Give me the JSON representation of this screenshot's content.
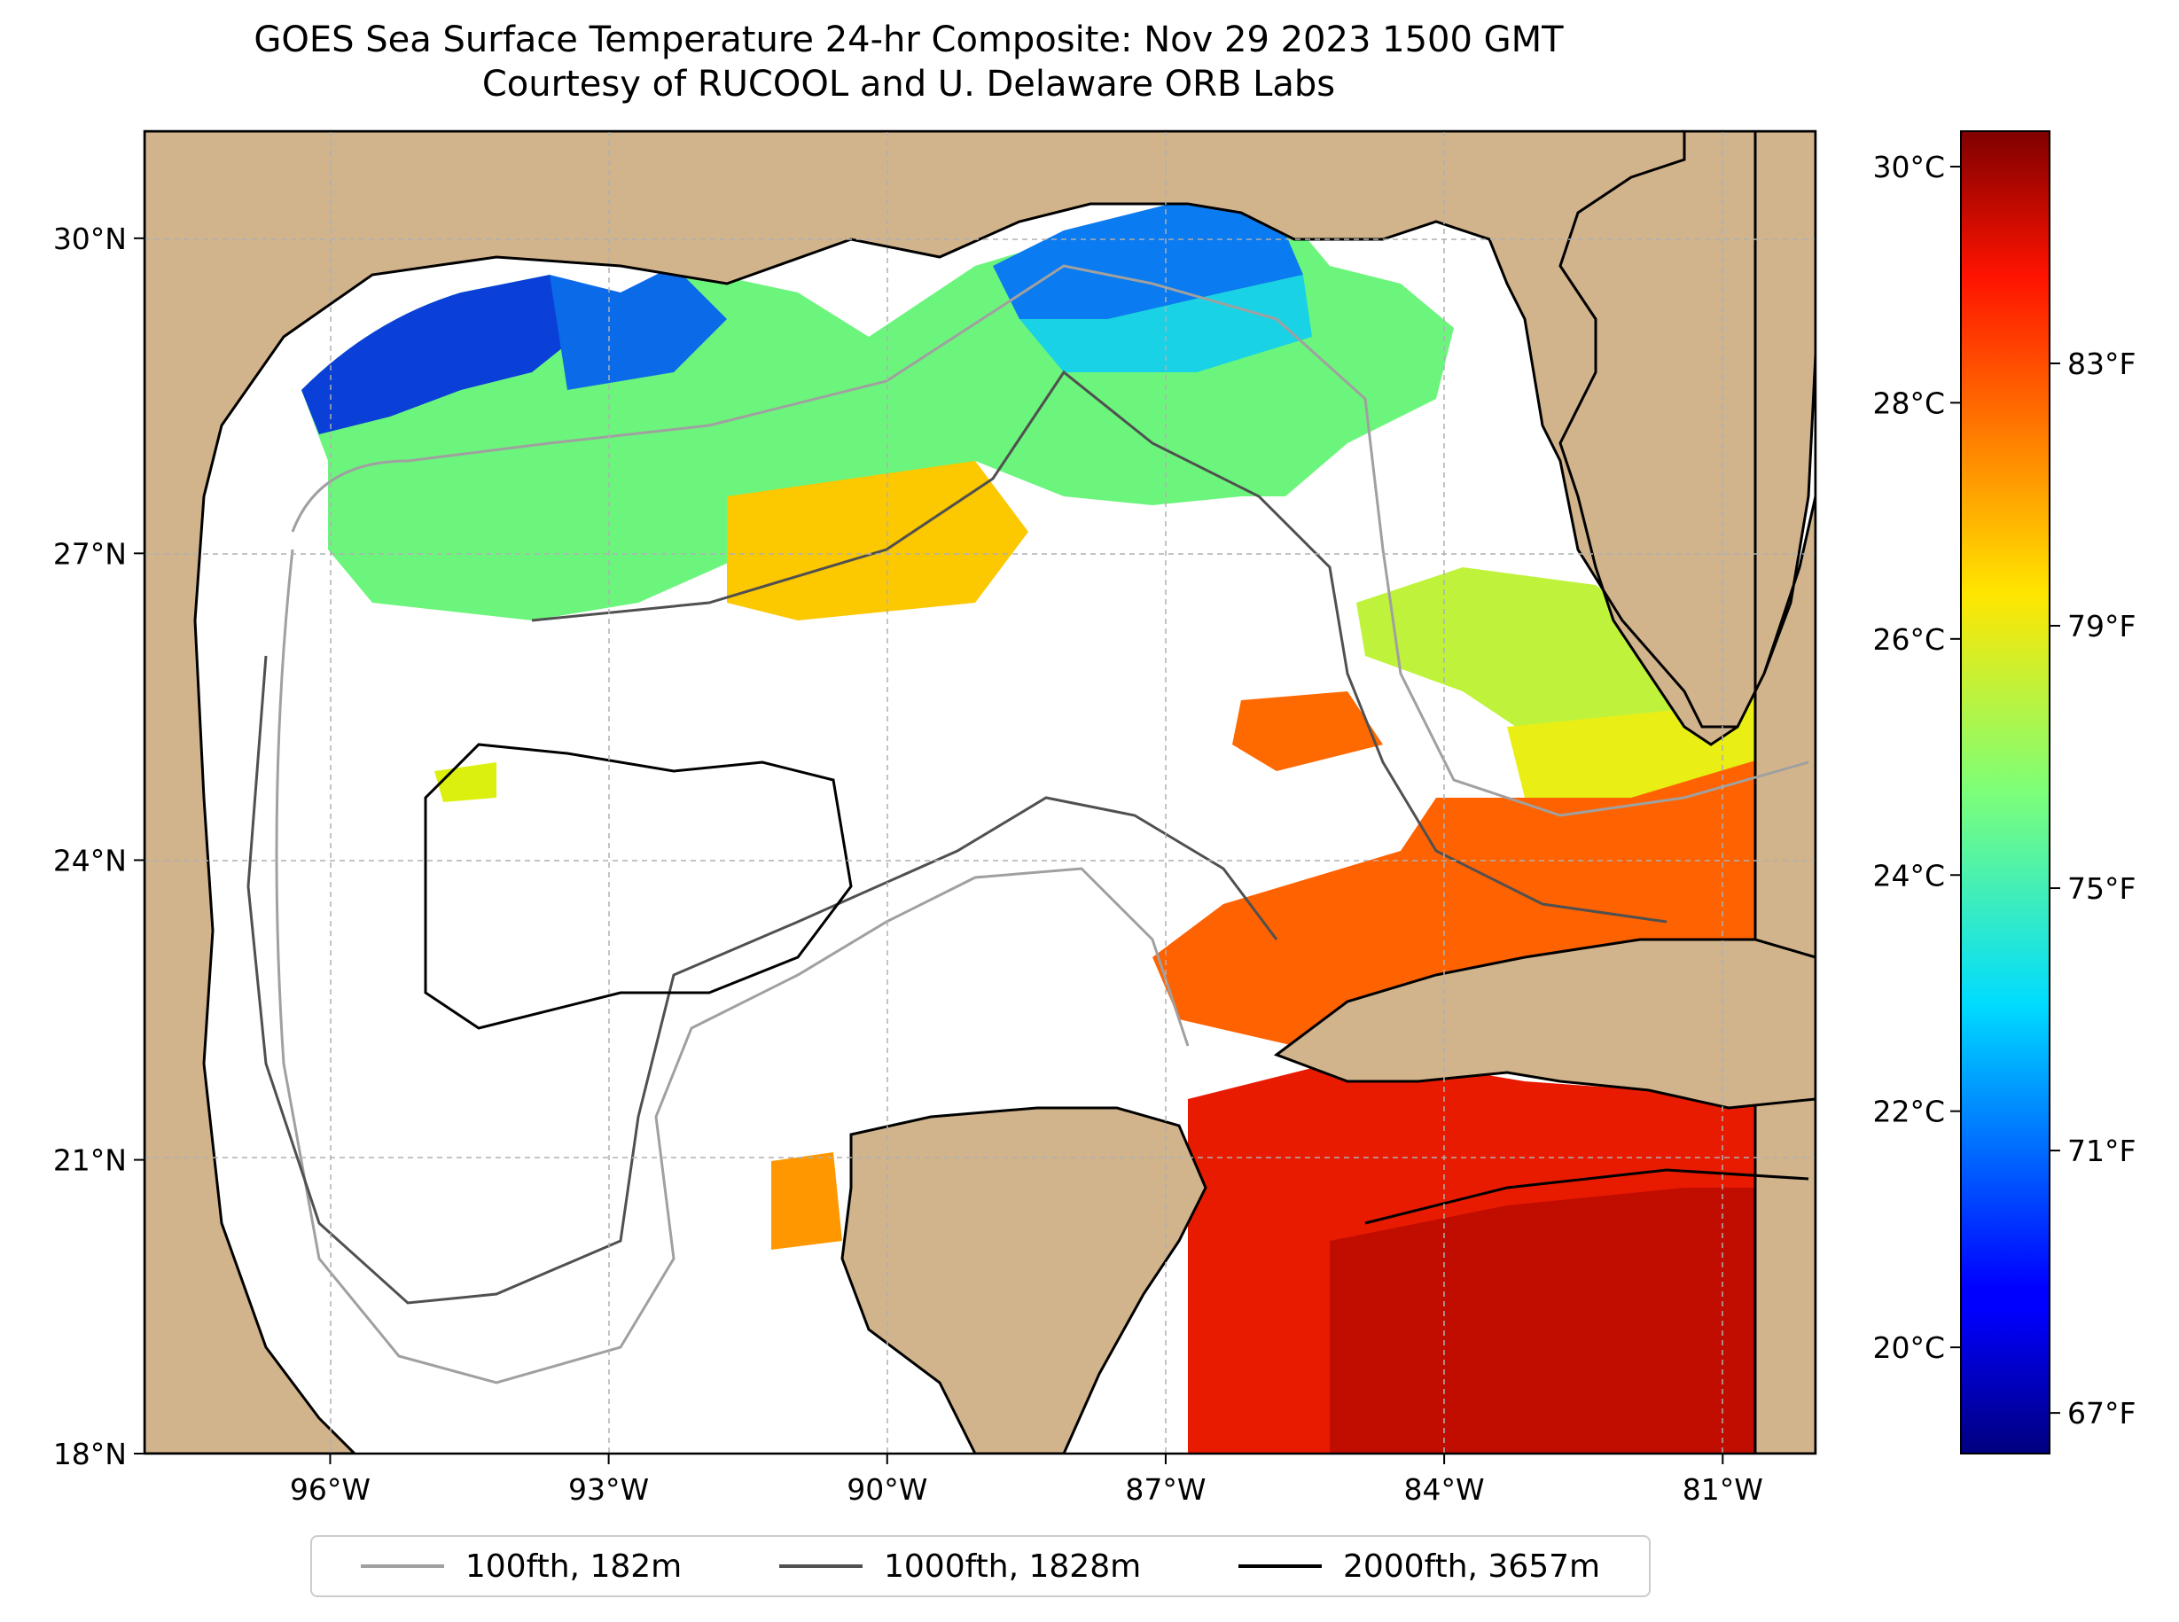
{
  "title": {
    "line1": "GOES Sea Surface Temperature 24-hr Composite: Nov 29 2023 1500 GMT",
    "line2": "Courtesy of RUCOOL and U. Delaware ORB Labs"
  },
  "map": {
    "lon_range": [
      -98,
      -80
    ],
    "lat_range": [
      18,
      31
    ],
    "lon_ticks": [
      {
        "value": -96,
        "label": "96°W"
      },
      {
        "value": -93,
        "label": "93°W"
      },
      {
        "value": -90,
        "label": "90°W"
      },
      {
        "value": -87,
        "label": "87°W"
      },
      {
        "value": -84,
        "label": "84°W"
      },
      {
        "value": -81,
        "label": "81°W"
      }
    ],
    "lat_ticks": [
      {
        "value": 18,
        "label": "18°N"
      },
      {
        "value": 21,
        "label": "21°N"
      },
      {
        "value": 24,
        "label": "24°N"
      },
      {
        "value": 27,
        "label": "27°N"
      },
      {
        "value": 30,
        "label": "30°N"
      }
    ],
    "grid": "dashed",
    "land_color": "#d2b48c",
    "water_no_data_color": "#ffffff"
  },
  "colorbar": {
    "range_c": [
      19.1,
      30.3
    ],
    "celsius_ticks": [
      {
        "value": 20,
        "label": "20°C"
      },
      {
        "value": 22,
        "label": "22°C"
      },
      {
        "value": 24,
        "label": "24°C"
      },
      {
        "value": 26,
        "label": "26°C"
      },
      {
        "value": 28,
        "label": "28°C"
      },
      {
        "value": 30,
        "label": "30°C"
      }
    ],
    "fahrenheit_ticks": [
      {
        "value": 67,
        "label": "67°F"
      },
      {
        "value": 71,
        "label": "71°F"
      },
      {
        "value": 75,
        "label": "75°F"
      },
      {
        "value": 79,
        "label": "79°F"
      },
      {
        "value": 83,
        "label": "83°F"
      }
    ],
    "colormap": "jet"
  },
  "legend": {
    "items": [
      {
        "label": "100fth, 182m",
        "color": "#a0a0a0"
      },
      {
        "label": "1000fth, 1828m",
        "color": "#505050"
      },
      {
        "label": "2000fth, 3657m",
        "color": "#000000"
      }
    ]
  }
}
